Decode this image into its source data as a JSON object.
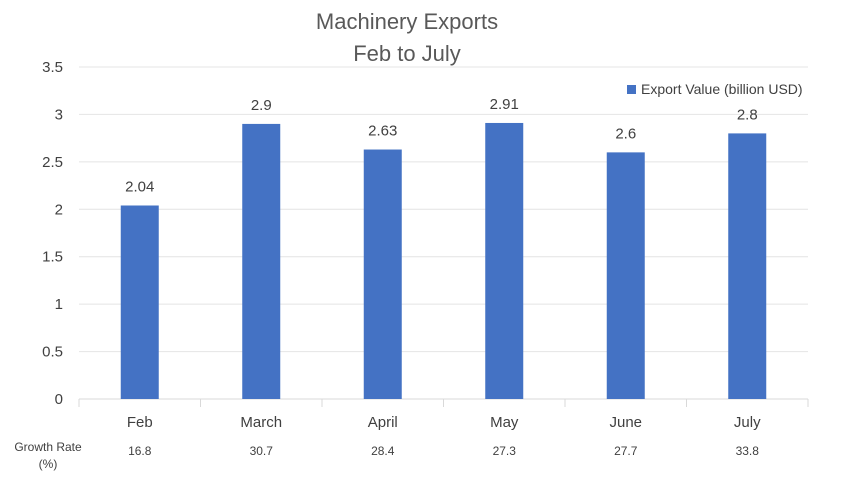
{
  "chart_data": {
    "type": "bar",
    "title": [
      "Machinery Exports",
      "Feb to July"
    ],
    "categories": [
      "Feb",
      "March",
      "April",
      "May",
      "June",
      "July"
    ],
    "series": [
      {
        "name": "Export Value (billion USD)",
        "values": [
          2.04,
          2.9,
          2.63,
          2.91,
          2.6,
          2.8
        ],
        "color": "#4472C4"
      }
    ],
    "ylim": [
      0,
      3.5
    ],
    "yticks": [
      "0",
      "0.5",
      "1",
      "1.5",
      "2",
      "2.5",
      "3",
      "3.5"
    ],
    "grid": true,
    "legend_position": "top-right",
    "table": {
      "row_label": [
        "Growth Rate",
        "(%)"
      ],
      "values": [
        "16.8",
        "30.7",
        "28.4",
        "27.3",
        "27.7",
        "33.8"
      ]
    }
  }
}
